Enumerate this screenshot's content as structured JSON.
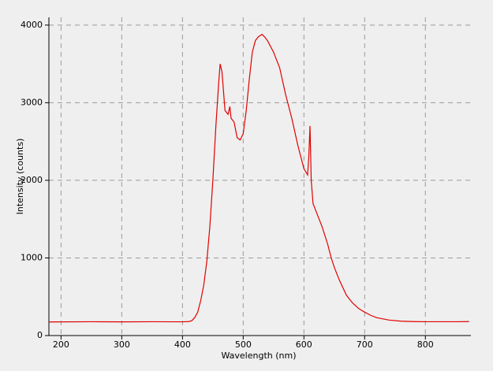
{
  "chart_data": {
    "type": "line",
    "x_label": "Wavelength (nm)",
    "y_label": "Intensity (counts)",
    "xlim": [
      180,
      875
    ],
    "ylim": [
      0,
      4100
    ],
    "xticks": [
      200,
      300,
      400,
      500,
      600,
      700,
      800
    ],
    "yticks": [
      0,
      1000,
      2000,
      3000,
      4000
    ],
    "grid": true,
    "series": [
      {
        "color": "#e00000",
        "x": [
          180,
          250,
          300,
          350,
          400,
          410,
          415,
          420,
          425,
          430,
          435,
          440,
          445,
          450,
          455,
          460,
          462,
          465,
          470,
          475,
          478,
          480,
          485,
          490,
          495,
          500,
          505,
          510,
          515,
          520,
          525,
          531,
          535,
          540,
          550,
          560,
          570,
          580,
          590,
          600,
          606,
          608,
          610,
          612,
          615,
          620,
          630,
          639,
          645,
          650,
          658,
          670,
          680,
          690,
          697,
          710,
          720,
          740,
          760,
          780,
          800,
          850,
          872
        ],
        "values": [
          175,
          178,
          176,
          178,
          177,
          180,
          190,
          230,
          300,
          450,
          650,
          950,
          1400,
          2000,
          2700,
          3300,
          3500,
          3400,
          2900,
          2850,
          2950,
          2800,
          2750,
          2550,
          2520,
          2600,
          2900,
          3300,
          3650,
          3800,
          3850,
          3880,
          3850,
          3800,
          3650,
          3450,
          3100,
          2800,
          2450,
          2150,
          2070,
          2300,
          2700,
          2000,
          1700,
          1600,
          1400,
          1180,
          1000,
          880,
          720,
          520,
          420,
          350,
          315,
          260,
          230,
          200,
          185,
          180,
          178,
          178,
          180
        ]
      }
    ]
  }
}
